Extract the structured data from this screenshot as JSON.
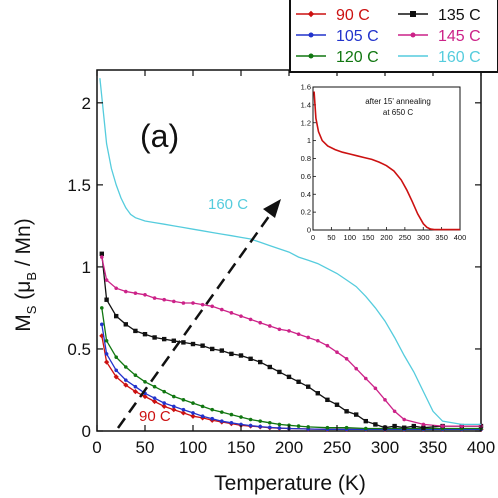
{
  "chart_data": {
    "type": "line",
    "panel_label": "(a)",
    "xlabel": "Temperature (K)",
    "ylabel_parts": {
      "main": "M",
      "sub_s": "S",
      "paren_open": " (",
      "mu": "μ",
      "sub_b": "B",
      "tail": " / Mn)"
    },
    "xlim": [
      0,
      400
    ],
    "ylim": [
      0,
      2.2
    ],
    "xticks": [
      "0",
      "50",
      "100",
      "150",
      "200",
      "250",
      "300",
      "350",
      "400"
    ],
    "yticks": [
      "0",
      "0.5",
      "1",
      "1.5",
      "2"
    ],
    "legend_position": "top-right",
    "series": [
      {
        "name": "90 C",
        "color": "#cc1111",
        "marker": "diamond",
        "x": [
          5,
          10,
          20,
          30,
          40,
          50,
          60,
          70,
          80,
          90,
          100,
          110,
          120,
          130,
          140,
          150,
          160,
          170,
          180,
          190,
          200,
          220,
          240,
          260,
          280,
          300,
          320,
          340,
          360,
          380,
          400
        ],
        "y": [
          0.58,
          0.42,
          0.33,
          0.28,
          0.24,
          0.21,
          0.18,
          0.15,
          0.13,
          0.11,
          0.09,
          0.08,
          0.065,
          0.055,
          0.045,
          0.035,
          0.03,
          0.025,
          0.02,
          0.017,
          0.015,
          0.012,
          0.01,
          0.01,
          0.01,
          0.01,
          0.01,
          0.01,
          0.01,
          0.01,
          0.01
        ]
      },
      {
        "name": "105 C",
        "color": "#2233cc",
        "marker": "circle",
        "x": [
          5,
          10,
          20,
          30,
          40,
          50,
          60,
          70,
          80,
          90,
          100,
          110,
          120,
          130,
          140,
          150,
          160,
          170,
          180,
          190,
          200,
          220,
          240,
          260,
          280,
          300,
          320,
          340,
          360,
          380,
          400
        ],
        "y": [
          0.65,
          0.47,
          0.37,
          0.31,
          0.27,
          0.23,
          0.2,
          0.17,
          0.15,
          0.13,
          0.11,
          0.09,
          0.075,
          0.06,
          0.05,
          0.04,
          0.033,
          0.027,
          0.022,
          0.018,
          0.015,
          0.012,
          0.01,
          0.01,
          0.01,
          0.01,
          0.01,
          0.01,
          0.01,
          0.01,
          0.01
        ]
      },
      {
        "name": "120 C",
        "color": "#117711",
        "marker": "circle",
        "x": [
          5,
          10,
          20,
          30,
          40,
          50,
          60,
          70,
          80,
          90,
          100,
          110,
          120,
          130,
          140,
          150,
          160,
          170,
          180,
          190,
          200,
          210,
          220,
          240,
          260,
          280,
          300,
          320,
          340,
          360,
          380,
          400
        ],
        "y": [
          0.75,
          0.55,
          0.45,
          0.39,
          0.34,
          0.3,
          0.27,
          0.24,
          0.21,
          0.19,
          0.17,
          0.15,
          0.13,
          0.115,
          0.1,
          0.085,
          0.07,
          0.06,
          0.05,
          0.04,
          0.035,
          0.03,
          0.025,
          0.02,
          0.02,
          0.015,
          0.015,
          0.015,
          0.015,
          0.015,
          0.015,
          0.015
        ]
      },
      {
        "name": "135 C",
        "color": "#111111",
        "marker": "square",
        "x": [
          5,
          10,
          20,
          30,
          40,
          50,
          60,
          70,
          80,
          90,
          100,
          110,
          120,
          130,
          140,
          150,
          160,
          170,
          180,
          190,
          200,
          210,
          220,
          230,
          240,
          250,
          260,
          270,
          280,
          290,
          300,
          310,
          320,
          330,
          340,
          360,
          380,
          400
        ],
        "y": [
          1.08,
          0.8,
          0.7,
          0.65,
          0.61,
          0.59,
          0.57,
          0.56,
          0.55,
          0.54,
          0.53,
          0.52,
          0.5,
          0.49,
          0.47,
          0.46,
          0.44,
          0.42,
          0.39,
          0.36,
          0.33,
          0.3,
          0.27,
          0.23,
          0.19,
          0.16,
          0.12,
          0.1,
          0.06,
          0.04,
          0.02,
          0.03,
          0.02,
          0.03,
          0.02,
          0.03,
          0.03,
          0.03
        ]
      },
      {
        "name": "145 C",
        "color": "#cc2288",
        "marker": "circle",
        "x": [
          5,
          10,
          20,
          30,
          40,
          50,
          60,
          70,
          80,
          90,
          100,
          110,
          120,
          130,
          140,
          150,
          160,
          170,
          180,
          190,
          200,
          210,
          220,
          230,
          240,
          250,
          260,
          270,
          280,
          290,
          300,
          310,
          320,
          340,
          360,
          380,
          400
        ],
        "y": [
          1.06,
          0.92,
          0.87,
          0.85,
          0.84,
          0.83,
          0.81,
          0.8,
          0.79,
          0.78,
          0.78,
          0.77,
          0.76,
          0.74,
          0.72,
          0.7,
          0.68,
          0.66,
          0.64,
          0.62,
          0.61,
          0.59,
          0.57,
          0.55,
          0.52,
          0.48,
          0.44,
          0.38,
          0.32,
          0.26,
          0.19,
          0.12,
          0.07,
          0.04,
          0.03,
          0.03,
          0.03
        ]
      },
      {
        "name": "160 C",
        "color": "#55ccdd",
        "marker": "none",
        "x": [
          3,
          10,
          15,
          20,
          25,
          30,
          35,
          40,
          50,
          60,
          70,
          80,
          90,
          100,
          110,
          120,
          130,
          140,
          150,
          160,
          170,
          180,
          190,
          200,
          210,
          220,
          230,
          240,
          250,
          260,
          270,
          280,
          290,
          300,
          310,
          320,
          330,
          340,
          350,
          360,
          380,
          400
        ],
        "y": [
          2.15,
          1.75,
          1.6,
          1.5,
          1.42,
          1.36,
          1.32,
          1.3,
          1.28,
          1.27,
          1.26,
          1.25,
          1.24,
          1.23,
          1.22,
          1.21,
          1.2,
          1.19,
          1.18,
          1.17,
          1.15,
          1.13,
          1.11,
          1.09,
          1.06,
          1.04,
          1.02,
          0.99,
          0.96,
          0.92,
          0.88,
          0.82,
          0.75,
          0.67,
          0.57,
          0.46,
          0.36,
          0.24,
          0.12,
          0.06,
          0.04,
          0.04
        ]
      }
    ],
    "annotations": [
      {
        "text": "160 C",
        "color": "#55ccdd"
      },
      {
        "text": "90 C",
        "color": "#cc1111"
      }
    ],
    "inset": {
      "title_line1": "after 15' annealing",
      "title_line2": "at 650 C",
      "xlim": [
        0,
        400
      ],
      "ylim": [
        0,
        1.6
      ],
      "xticks": [
        "0",
        "50",
        "100",
        "150",
        "200",
        "250",
        "300",
        "350",
        "400"
      ],
      "yticks": [
        "0",
        "0.2",
        "0.4",
        "0.6",
        "0.8",
        "1",
        "1.2",
        "1.4",
        "1.6"
      ],
      "color": "#cc1111",
      "x": [
        3,
        8,
        15,
        25,
        40,
        60,
        80,
        100,
        120,
        140,
        160,
        180,
        200,
        220,
        240,
        255,
        270,
        285,
        300,
        310,
        320,
        330,
        340,
        360,
        380,
        400
      ],
      "y": [
        1.55,
        1.25,
        1.1,
        1.0,
        0.94,
        0.9,
        0.87,
        0.85,
        0.83,
        0.81,
        0.79,
        0.76,
        0.72,
        0.66,
        0.56,
        0.45,
        0.32,
        0.18,
        0.07,
        0.03,
        0.01,
        0.005,
        0.005,
        0.005,
        0.005,
        0.005
      ]
    }
  }
}
